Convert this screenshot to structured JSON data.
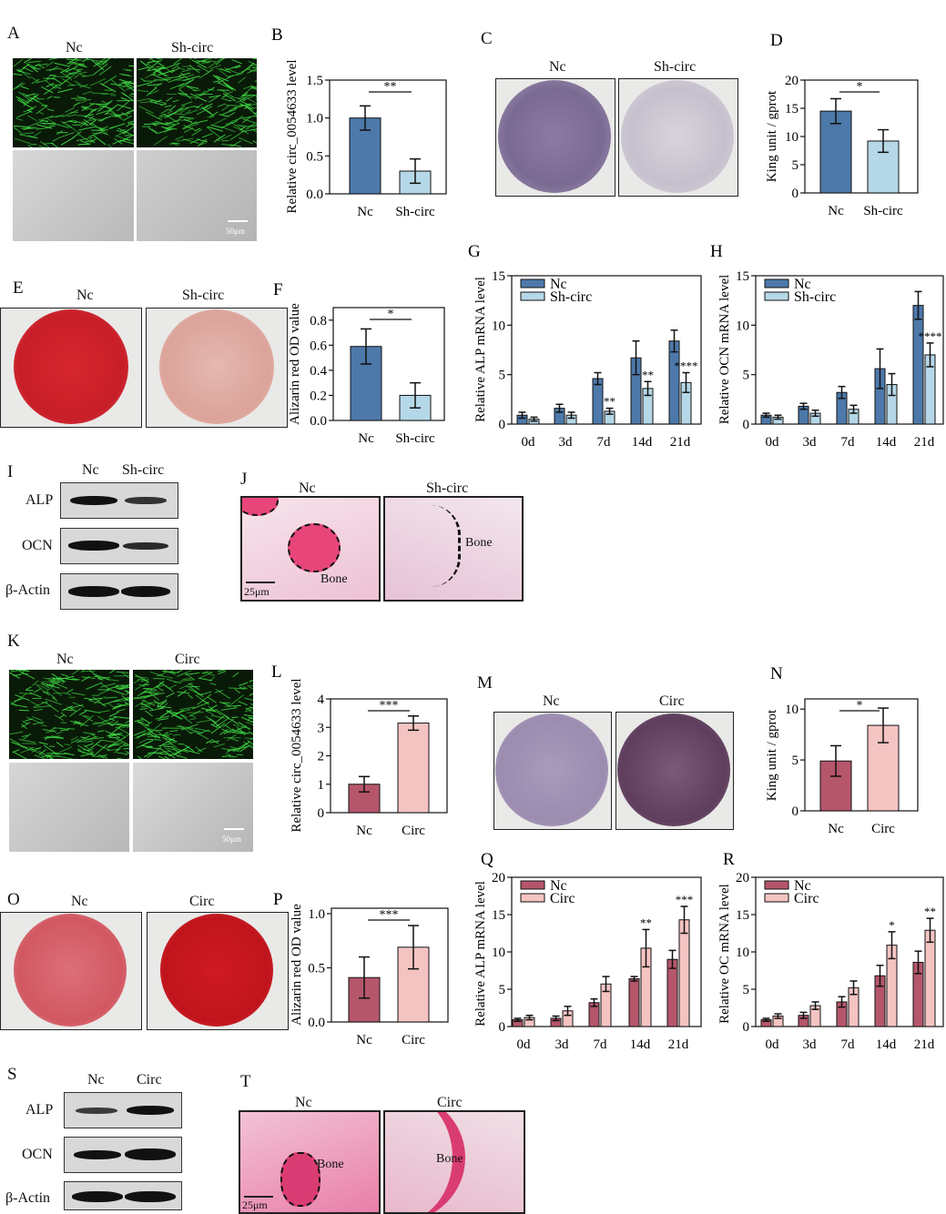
{
  "colors": {
    "sh_dark": "#4d79aa",
    "sh_light": "#b5d8e8",
    "oe_dark": "#b5566b",
    "oe_light": "#f4c4c2",
    "fluor_green": "#3ed443",
    "alizarin_red": "#d6262e",
    "alp_purple": "#8c7aa3"
  },
  "panels": {
    "A": {
      "letter": "A",
      "left": "Nc",
      "right": "Sh-circ",
      "scale": "50μm"
    },
    "C": {
      "letter": "C",
      "left": "Nc",
      "right": "Sh-circ"
    },
    "E": {
      "letter": "E",
      "left": "Nc",
      "right": "Sh-circ"
    },
    "I": {
      "letter": "I",
      "cols": [
        "Nc",
        "Sh-circ"
      ],
      "rows": [
        "ALP",
        "OCN",
        "β-Actin"
      ]
    },
    "J": {
      "letter": "J",
      "left": "Nc",
      "right": "Sh-circ",
      "bone": "Bone",
      "scale": "25μm"
    },
    "K": {
      "letter": "K",
      "left": "Nc",
      "right": "Circ",
      "scale": "50μm"
    },
    "M": {
      "letter": "M",
      "left": "Nc",
      "right": "Circ"
    },
    "O": {
      "letter": "O",
      "left": "Nc",
      "right": "Circ"
    },
    "S": {
      "letter": "S",
      "cols": [
        "Nc",
        "Circ"
      ],
      "rows": [
        "ALP",
        "OCN",
        "β-Actin"
      ]
    },
    "T": {
      "letter": "T",
      "left": "Nc",
      "right": "Circ",
      "bone": "Bone",
      "scale": "25μm"
    }
  },
  "chart_data": [
    {
      "id": "B",
      "letter": "B",
      "type": "bar",
      "categories": [
        "Nc",
        "Sh-circ"
      ],
      "values": [
        1.0,
        0.3
      ],
      "errors": [
        0.16,
        0.16
      ],
      "ylabel": "Relative circ_0054633 level",
      "ylim": [
        0,
        1.5
      ],
      "yticks": [
        0,
        0.5,
        1.0,
        1.5
      ],
      "ytick_labels": [
        "0.0",
        "0.5",
        "1.0",
        "1.5"
      ],
      "significance": "**",
      "palette": "sh"
    },
    {
      "id": "D",
      "letter": "D",
      "type": "bar",
      "categories": [
        "Nc",
        "Sh-circ"
      ],
      "values": [
        14.5,
        9.2
      ],
      "errors": [
        2.2,
        2.0
      ],
      "ylabel": "King unit / gprot",
      "ylim": [
        0,
        20
      ],
      "yticks": [
        0,
        5,
        10,
        15,
        20
      ],
      "ytick_labels": [
        "0",
        "5",
        "10",
        "15",
        "20"
      ],
      "significance": "*",
      "palette": "sh"
    },
    {
      "id": "F",
      "letter": "F",
      "type": "bar",
      "categories": [
        "Nc",
        "Sh-circ"
      ],
      "values": [
        0.59,
        0.2
      ],
      "errors": [
        0.14,
        0.1
      ],
      "ylabel": "Alizarin red OD value",
      "ylim": [
        0,
        0.9
      ],
      "yticks": [
        0,
        0.2,
        0.4,
        0.6,
        0.8
      ],
      "ytick_labels": [
        "0.0",
        "0.2",
        "0.4",
        "0.6",
        "0.8"
      ],
      "significance": "*",
      "palette": "sh"
    },
    {
      "id": "G",
      "letter": "G",
      "type": "bar",
      "categories": [
        "0d",
        "3d",
        "7d",
        "14d",
        "21d"
      ],
      "series": [
        {
          "name": "Nc",
          "values": [
            0.9,
            1.6,
            4.6,
            6.7,
            8.4
          ],
          "errors": [
            0.3,
            0.4,
            0.6,
            1.7,
            1.1
          ]
        },
        {
          "name": "Sh-circ",
          "values": [
            0.5,
            0.9,
            1.3,
            3.6,
            4.2
          ],
          "errors": [
            0.2,
            0.3,
            0.3,
            0.7,
            1.0
          ]
        }
      ],
      "ylabel": "Relative ALP mRNA level",
      "ylim": [
        0,
        15
      ],
      "yticks": [
        0,
        5,
        10,
        15
      ],
      "ytick_labels": [
        "0",
        "5",
        "10",
        "15"
      ],
      "annotations": [
        "",
        "",
        "**",
        "**",
        "****"
      ],
      "legend": "top-left",
      "palette": "sh"
    },
    {
      "id": "H",
      "letter": "H",
      "type": "bar",
      "categories": [
        "0d",
        "3d",
        "7d",
        "14d",
        "21d"
      ],
      "series": [
        {
          "name": "Nc",
          "values": [
            0.9,
            1.8,
            3.2,
            5.6,
            12.0
          ],
          "errors": [
            0.2,
            0.3,
            0.6,
            2.0,
            1.4
          ]
        },
        {
          "name": "Sh-circ",
          "values": [
            0.7,
            1.1,
            1.5,
            4.0,
            7.0
          ],
          "errors": [
            0.2,
            0.3,
            0.4,
            1.1,
            1.2
          ]
        }
      ],
      "ylabel": "Relative OCN mRNA level",
      "ylim": [
        0,
        15
      ],
      "yticks": [
        0,
        5,
        10,
        15
      ],
      "ytick_labels": [
        "0",
        "5",
        "10",
        "15"
      ],
      "annotations": [
        "",
        "",
        "",
        "",
        "****"
      ],
      "legend": "top-left",
      "palette": "sh"
    },
    {
      "id": "L",
      "letter": "L",
      "type": "bar",
      "categories": [
        "Nc",
        "Circ"
      ],
      "values": [
        1.0,
        3.15
      ],
      "errors": [
        0.27,
        0.25
      ],
      "ylabel": "Relative circ_0054633 level",
      "ylim": [
        0,
        4
      ],
      "yticks": [
        0,
        1,
        2,
        3,
        4
      ],
      "ytick_labels": [
        "0",
        "1",
        "2",
        "3",
        "4"
      ],
      "significance": "***",
      "palette": "oe"
    },
    {
      "id": "N",
      "letter": "N",
      "type": "bar",
      "categories": [
        "Nc",
        "Circ"
      ],
      "values": [
        4.9,
        8.4
      ],
      "errors": [
        1.5,
        1.7
      ],
      "ylabel": "King unit / gprot",
      "ylim": [
        0,
        11
      ],
      "yticks": [
        0,
        5,
        10
      ],
      "ytick_labels": [
        "0",
        "5",
        "10"
      ],
      "significance": "*",
      "palette": "oe"
    },
    {
      "id": "P",
      "letter": "P",
      "type": "bar",
      "categories": [
        "Nc",
        "Circ"
      ],
      "values": [
        0.41,
        0.69
      ],
      "errors": [
        0.19,
        0.2
      ],
      "ylabel": "Alizarin red OD value",
      "ylim": [
        0,
        1.05
      ],
      "yticks": [
        0,
        0.5,
        1.0
      ],
      "ytick_labels": [
        "0.0",
        "0.5",
        "1.0"
      ],
      "significance": "***",
      "palette": "oe"
    },
    {
      "id": "Q",
      "letter": "Q",
      "type": "bar",
      "categories": [
        "0d",
        "3d",
        "7d",
        "14d",
        "21d"
      ],
      "series": [
        {
          "name": "Nc",
          "values": [
            0.9,
            1.1,
            3.2,
            6.4,
            9.0
          ],
          "errors": [
            0.2,
            0.3,
            0.5,
            0.3,
            1.2
          ]
        },
        {
          "name": "Circ",
          "values": [
            1.2,
            2.1,
            5.7,
            10.5,
            14.3
          ],
          "errors": [
            0.3,
            0.6,
            1.0,
            2.5,
            1.8
          ]
        }
      ],
      "ylabel": "Relative ALP mRNA level",
      "ylim": [
        0,
        20
      ],
      "yticks": [
        0,
        5,
        10,
        15,
        20
      ],
      "ytick_labels": [
        "0",
        "5",
        "10",
        "15",
        "20"
      ],
      "annotations": [
        "",
        "",
        "",
        "**",
        "***"
      ],
      "legend": "top-left",
      "palette": "oe"
    },
    {
      "id": "R",
      "letter": "R",
      "type": "bar",
      "categories": [
        "0d",
        "3d",
        "7d",
        "14d",
        "21d"
      ],
      "series": [
        {
          "name": "Nc",
          "values": [
            0.9,
            1.5,
            3.3,
            6.8,
            8.6
          ],
          "errors": [
            0.2,
            0.4,
            0.7,
            1.4,
            1.5
          ]
        },
        {
          "name": "Circ",
          "values": [
            1.4,
            2.8,
            5.2,
            10.9,
            12.9
          ],
          "errors": [
            0.3,
            0.5,
            0.9,
            1.8,
            1.6
          ]
        }
      ],
      "ylabel": "Relative OC mRNA level",
      "ylim": [
        0,
        20
      ],
      "yticks": [
        0,
        5,
        10,
        15,
        20
      ],
      "ytick_labels": [
        "0",
        "5",
        "10",
        "15",
        "20"
      ],
      "annotations": [
        "",
        "",
        "",
        "*",
        "**"
      ],
      "legend": "top-left",
      "palette": "oe"
    }
  ]
}
